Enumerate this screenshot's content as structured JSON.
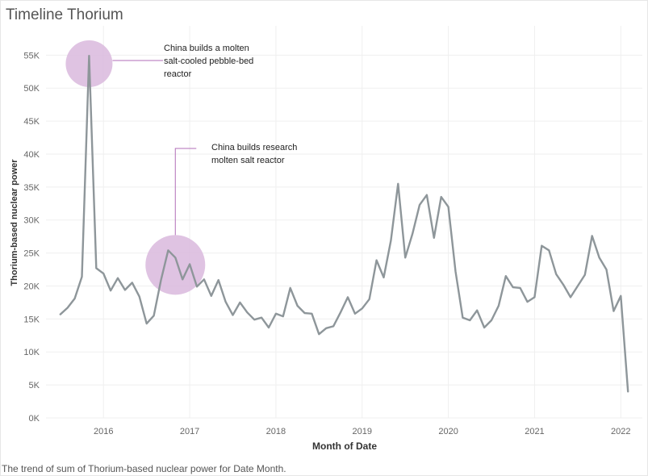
{
  "title": "Timeline Thorium",
  "caption": "The trend of sum of Thorium-based nuclear power for Date Month.",
  "chart_data": {
    "type": "line",
    "xlabel": "Month of Date",
    "ylabel": "Thorium-based nuclear power",
    "x_tick_labels": [
      "2016",
      "2017",
      "2018",
      "2019",
      "2020",
      "2021",
      "2022"
    ],
    "y_tick_labels": [
      "0K",
      "5K",
      "10K",
      "15K",
      "20K",
      "25K",
      "30K",
      "35K",
      "40K",
      "45K",
      "50K",
      "55K"
    ],
    "ylim": [
      0,
      57000
    ],
    "xlim": [
      "2015-05",
      "2022-04"
    ],
    "grid": true,
    "line_color": "#8e969a",
    "highlight_color": "#d9b8dd",
    "leader_color": "#b26eb8",
    "series": [
      {
        "x": [
          "2015-07",
          "2015-08",
          "2015-09",
          "2015-10",
          "2015-11",
          "2015-12",
          "2016-01",
          "2016-02",
          "2016-03",
          "2016-04",
          "2016-05",
          "2016-06",
          "2016-07",
          "2016-08",
          "2016-09",
          "2016-10",
          "2016-11",
          "2016-12",
          "2017-01",
          "2017-02",
          "2017-03",
          "2017-04",
          "2017-05",
          "2017-06",
          "2017-07",
          "2017-08",
          "2017-09",
          "2017-10",
          "2017-11",
          "2017-12",
          "2018-01",
          "2018-02",
          "2018-03",
          "2018-04",
          "2018-05",
          "2018-06",
          "2018-07",
          "2018-08",
          "2018-09",
          "2018-10",
          "2018-11",
          "2018-12",
          "2019-01",
          "2019-02",
          "2019-03",
          "2019-04",
          "2019-05",
          "2019-06",
          "2019-07",
          "2019-08",
          "2019-09",
          "2019-10",
          "2019-11",
          "2019-12",
          "2020-01",
          "2020-02",
          "2020-03",
          "2020-04",
          "2020-05",
          "2020-06",
          "2020-07",
          "2020-08",
          "2020-09",
          "2020-10",
          "2020-11",
          "2020-12",
          "2021-01",
          "2021-02",
          "2021-03",
          "2021-04",
          "2021-05",
          "2021-06",
          "2021-07",
          "2021-08",
          "2021-09",
          "2021-10",
          "2021-11",
          "2021-12",
          "2022-01",
          "2022-02"
        ],
        "values": [
          15700,
          16700,
          18100,
          21400,
          54900,
          22700,
          21900,
          19300,
          21200,
          19400,
          20500,
          18400,
          14300,
          15500,
          20900,
          25400,
          24300,
          21000,
          23300,
          19900,
          21000,
          18500,
          20900,
          17600,
          15600,
          17500,
          16000,
          14900,
          15200,
          13700,
          15800,
          15400,
          19700,
          17000,
          15900,
          15800,
          12700,
          13600,
          13900,
          16000,
          18300,
          15800,
          16600,
          18000,
          23900,
          21300,
          26900,
          35500,
          24300,
          27900,
          32300,
          33800,
          27300,
          33500,
          32000,
          22200,
          15200,
          14800,
          16300,
          13700,
          14800,
          17000,
          21500,
          19800,
          19700,
          17600,
          18300,
          26100,
          25400,
          21800,
          20200,
          18300,
          20000,
          21700,
          27600,
          24300,
          22500,
          16200,
          18500,
          4000
        ]
      }
    ],
    "annotations": [
      {
        "lines": [
          "China builds a molten",
          "salt-cooled pebble-bed",
          "reactor"
        ],
        "at_x": "2015-11",
        "at_y": 53700
      },
      {
        "lines": [
          "China builds research",
          "molten salt reactor"
        ],
        "at_x": "2016-11",
        "at_y": 23200
      }
    ]
  }
}
